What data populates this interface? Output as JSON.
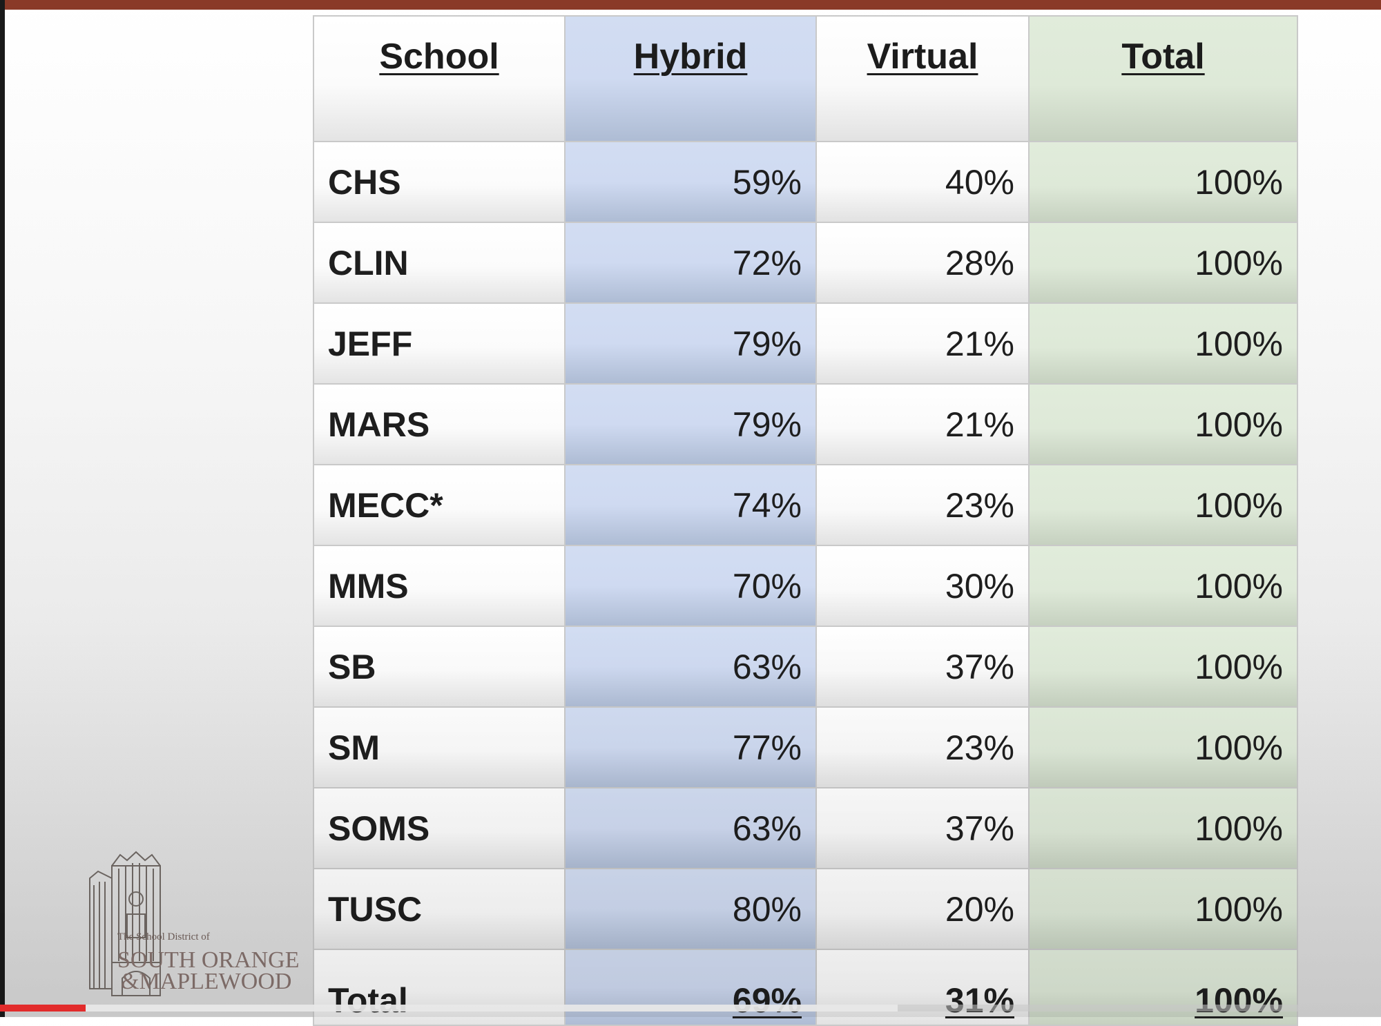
{
  "table": {
    "headers": {
      "school": "School",
      "hybrid": "Hybrid",
      "virtual": "Virtual",
      "total": "Total"
    },
    "rows": [
      {
        "school": "CHS",
        "hybrid": "59%",
        "virtual": "40%",
        "total": "100%"
      },
      {
        "school": "CLIN",
        "hybrid": "72%",
        "virtual": "28%",
        "total": "100%"
      },
      {
        "school": "JEFF",
        "hybrid": "79%",
        "virtual": "21%",
        "total": "100%"
      },
      {
        "school": "MARS",
        "hybrid": "79%",
        "virtual": "21%",
        "total": "100%"
      },
      {
        "school": "MECC*",
        "hybrid": "74%",
        "virtual": "23%",
        "total": "100%"
      },
      {
        "school": "MMS",
        "hybrid": "70%",
        "virtual": "30%",
        "total": "100%"
      },
      {
        "school": "SB",
        "hybrid": "63%",
        "virtual": "37%",
        "total": "100%"
      },
      {
        "school": "SM",
        "hybrid": "77%",
        "virtual": "23%",
        "total": "100%"
      },
      {
        "school": "SOMS",
        "hybrid": "63%",
        "virtual": "37%",
        "total": "100%"
      },
      {
        "school": "TUSC",
        "hybrid": "80%",
        "virtual": "20%",
        "total": "100%"
      }
    ],
    "total_row": {
      "school": "Total",
      "hybrid": "69%",
      "virtual": "31%",
      "total": "100%"
    }
  },
  "logo": {
    "line_small": "The School District of",
    "line_1": "SOUTH ORANGE",
    "line_2": "&MAPLEWOOD"
  },
  "colors": {
    "hybrid_column": "#cfdaf1",
    "total_column": "#dee9d8",
    "top_bar": "#8a3a28",
    "progress_played": "#e22b2b"
  },
  "video": {
    "played_fraction": 0.062,
    "buffered_fraction": 0.65
  }
}
